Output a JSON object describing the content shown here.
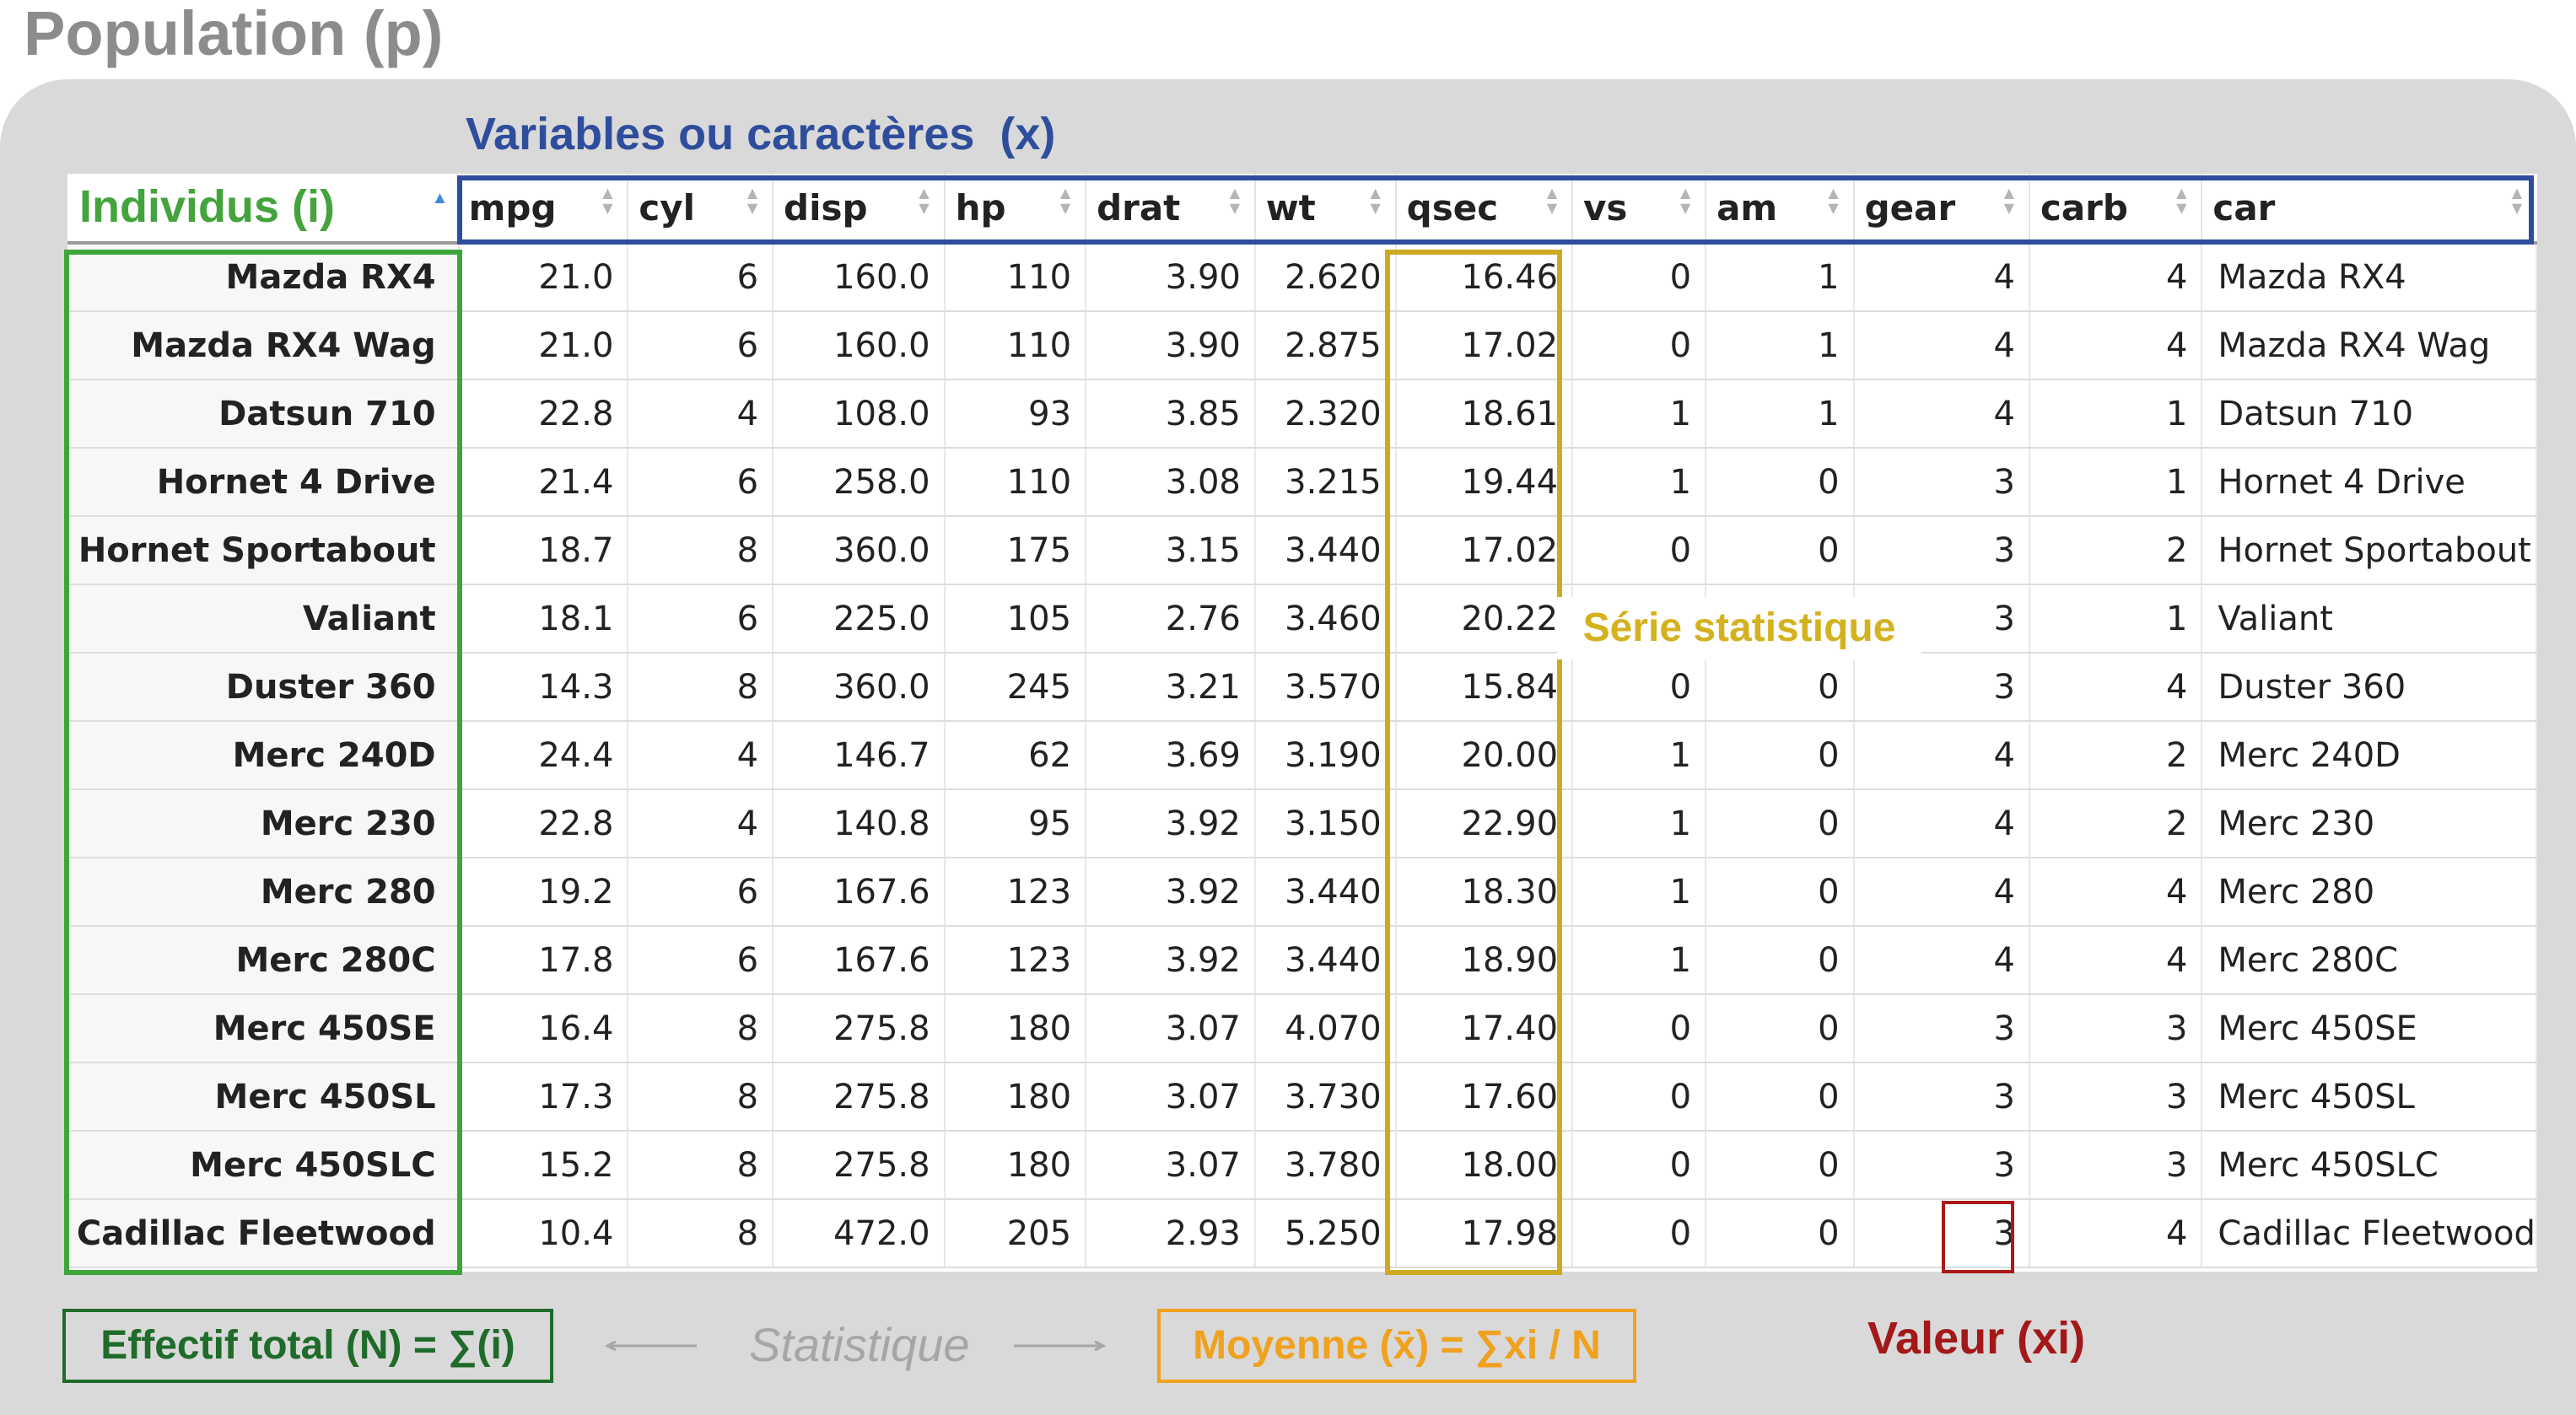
{
  "title": "Population (p)",
  "variables_label": "Variables ou caractères  (x)",
  "columns": [
    {
      "key": "rowname",
      "label": "Individus (i)"
    },
    {
      "key": "mpg",
      "label": "mpg"
    },
    {
      "key": "cyl",
      "label": "cyl"
    },
    {
      "key": "disp",
      "label": "disp"
    },
    {
      "key": "hp",
      "label": "hp"
    },
    {
      "key": "drat",
      "label": "drat"
    },
    {
      "key": "wt",
      "label": "wt"
    },
    {
      "key": "qsec",
      "label": "qsec"
    },
    {
      "key": "vs",
      "label": "vs"
    },
    {
      "key": "am",
      "label": "am"
    },
    {
      "key": "gear",
      "label": "gear"
    },
    {
      "key": "carb",
      "label": "carb"
    },
    {
      "key": "car",
      "label": "car"
    }
  ],
  "rows": [
    [
      "Mazda RX4",
      "21.0",
      "6",
      "160.0",
      "110",
      "3.90",
      "2.620",
      "16.46",
      "0",
      "1",
      "4",
      "4",
      "Mazda RX4"
    ],
    [
      "Mazda RX4 Wag",
      "21.0",
      "6",
      "160.0",
      "110",
      "3.90",
      "2.875",
      "17.02",
      "0",
      "1",
      "4",
      "4",
      "Mazda RX4 Wag"
    ],
    [
      "Datsun 710",
      "22.8",
      "4",
      "108.0",
      "93",
      "3.85",
      "2.320",
      "18.61",
      "1",
      "1",
      "4",
      "1",
      "Datsun 710"
    ],
    [
      "Hornet 4 Drive",
      "21.4",
      "6",
      "258.0",
      "110",
      "3.08",
      "3.215",
      "19.44",
      "1",
      "0",
      "3",
      "1",
      "Hornet 4 Drive"
    ],
    [
      "Hornet Sportabout",
      "18.7",
      "8",
      "360.0",
      "175",
      "3.15",
      "3.440",
      "17.02",
      "0",
      "0",
      "3",
      "2",
      "Hornet Sportabout"
    ],
    [
      "Valiant",
      "18.1",
      "6",
      "225.0",
      "105",
      "2.76",
      "3.460",
      "20.22",
      "",
      "",
      "3",
      "1",
      "Valiant"
    ],
    [
      "Duster 360",
      "14.3",
      "8",
      "360.0",
      "245",
      "3.21",
      "3.570",
      "15.84",
      "0",
      "0",
      "3",
      "4",
      "Duster 360"
    ],
    [
      "Merc 240D",
      "24.4",
      "4",
      "146.7",
      "62",
      "3.69",
      "3.190",
      "20.00",
      "1",
      "0",
      "4",
      "2",
      "Merc 240D"
    ],
    [
      "Merc 230",
      "22.8",
      "4",
      "140.8",
      "95",
      "3.92",
      "3.150",
      "22.90",
      "1",
      "0",
      "4",
      "2",
      "Merc 230"
    ],
    [
      "Merc 280",
      "19.2",
      "6",
      "167.6",
      "123",
      "3.92",
      "3.440",
      "18.30",
      "1",
      "0",
      "4",
      "4",
      "Merc 280"
    ],
    [
      "Merc 280C",
      "17.8",
      "6",
      "167.6",
      "123",
      "3.92",
      "3.440",
      "18.90",
      "1",
      "0",
      "4",
      "4",
      "Merc 280C"
    ],
    [
      "Merc 450SE",
      "16.4",
      "8",
      "275.8",
      "180",
      "3.07",
      "4.070",
      "17.40",
      "0",
      "0",
      "3",
      "3",
      "Merc 450SE"
    ],
    [
      "Merc 450SL",
      "17.3",
      "8",
      "275.8",
      "180",
      "3.07",
      "3.730",
      "17.60",
      "0",
      "0",
      "3",
      "3",
      "Merc 450SL"
    ],
    [
      "Merc 450SLC",
      "15.2",
      "8",
      "275.8",
      "180",
      "3.07",
      "3.780",
      "18.00",
      "0",
      "0",
      "3",
      "3",
      "Merc 450SLC"
    ],
    [
      "Cadillac Fleetwood",
      "10.4",
      "8",
      "472.0",
      "205",
      "2.93",
      "5.250",
      "17.98",
      "0",
      "0",
      "3",
      "4",
      "Cadillac Fleetwood"
    ]
  ],
  "annotations": {
    "serie": "Série statistique",
    "effectif": "Effectif total (N) = ∑(i)",
    "statistique": "Statistique",
    "moyenne": "Moyenne (x̄) = ∑xi / N",
    "valeur": "Valeur (xi)"
  },
  "colors": {
    "individus": "#3da63a",
    "variables": "#2e4d9c",
    "serie": "#ccaa22",
    "moyenne": "#f0a11e",
    "valeur": "#aa1a1a",
    "effectif": "#1e6b2a",
    "statistique": "#a6a6a6"
  },
  "icons": {
    "sort_active": "sort-ascending-icon",
    "sort_inactive": "sort-both-icon"
  }
}
